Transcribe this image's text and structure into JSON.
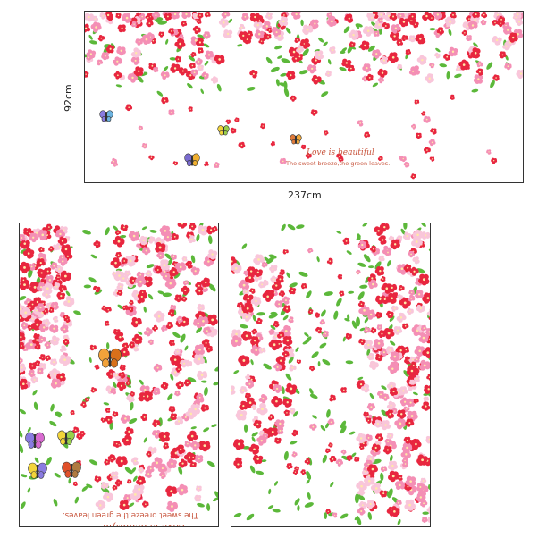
{
  "dimensions": {
    "height_label": "92cm",
    "width_label": "237cm"
  },
  "slogan": {
    "main": "Love is beautiful",
    "sub": "The sweet breeze,the green leaves."
  },
  "colors": {
    "red": "#e8263f",
    "pink": "#f48fb5",
    "light_pink": "#f9c6da",
    "green": "#5cb83a",
    "text": "#c8553d"
  }
}
